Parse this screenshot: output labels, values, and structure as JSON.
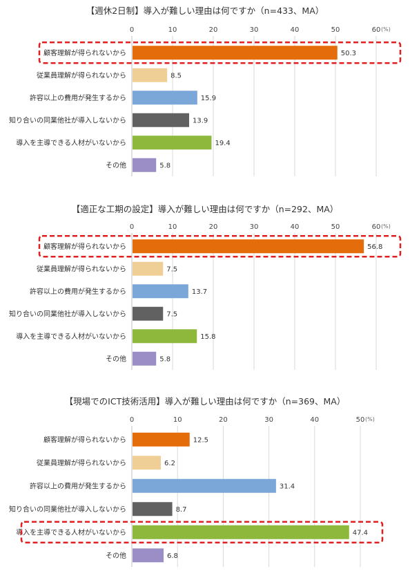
{
  "chart_data": [
    {
      "type": "bar",
      "orientation": "horizontal",
      "title": "【週休2日制】導入が難しい理由は何ですか（n=433、MA）",
      "unit": "(%)",
      "xlim": [
        0,
        60
      ],
      "ticks": [
        "0",
        "10",
        "20",
        "30",
        "40",
        "50",
        "60"
      ],
      "grid": true,
      "categories": [
        "顧客理解が得られないから",
        "従業員理解が得られないから",
        "許容以上の費用が発生するから",
        "知り合いの同業他社が導入しないから",
        "導入を主導できる人材がいないから",
        "その他"
      ],
      "values": [
        50.3,
        8.5,
        15.9,
        13.9,
        19.4,
        5.8
      ],
      "value_labels": [
        "50.3",
        "8.5",
        "15.9",
        "13.9",
        "19.4",
        "5.8"
      ],
      "highlighted_category": "顧客理解が得られないから"
    },
    {
      "type": "bar",
      "orientation": "horizontal",
      "title": "【適正な工期の設定】導入が難しい理由は何ですか（n=292、MA）",
      "unit": "(%)",
      "xlim": [
        0,
        60
      ],
      "ticks": [
        "0",
        "10",
        "20",
        "30",
        "40",
        "50",
        "60"
      ],
      "grid": true,
      "categories": [
        "顧客理解が得られないから",
        "従業員理解が得られないから",
        "許容以上の費用が発生するから",
        "知り合いの同業他社が導入しないから",
        "導入を主導できる人材がいないから",
        "その他"
      ],
      "values": [
        56.8,
        7.5,
        13.7,
        7.5,
        15.8,
        5.8
      ],
      "value_labels": [
        "56.8",
        "7.5",
        "13.7",
        "7.5",
        "15.8",
        "5.8"
      ],
      "highlighted_category": "顧客理解が得られないから"
    },
    {
      "type": "bar",
      "orientation": "horizontal",
      "title": "【現場でのICT技術活用】導入が難しい理由は何ですか（n=369、MA）",
      "unit": "(%)",
      "xlim": [
        0,
        50
      ],
      "ticks": [
        "0",
        "10",
        "20",
        "30",
        "40",
        "50"
      ],
      "grid": true,
      "categories": [
        "顧客理解が得られないから",
        "従業員理解が得られないから",
        "許容以上の費用が発生するから",
        "知り合いの同業他社が導入しないから",
        "導入を主導できる人材がいないから",
        "その他"
      ],
      "values": [
        12.5,
        6.2,
        31.4,
        8.7,
        47.4,
        6.8
      ],
      "value_labels": [
        "12.5",
        "6.2",
        "31.4",
        "8.7",
        "47.4",
        "6.8"
      ],
      "highlighted_category": "導入を主導できる人材がいないから"
    }
  ],
  "colors": {
    "bars": [
      "#e46c0a",
      "#f0cf96",
      "#7aa6d8",
      "#616161",
      "#8db83c",
      "#9b8ec6"
    ],
    "highlight": "#e02020"
  }
}
